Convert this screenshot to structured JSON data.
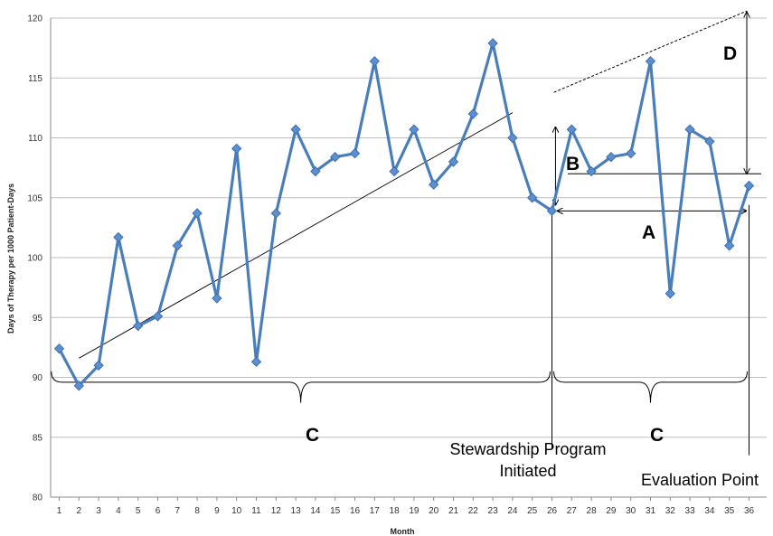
{
  "chart_data": {
    "type": "line",
    "title": "",
    "xlabel": "Month",
    "ylabel": "Days of Therapy per 1000 Patient-Days",
    "xlim": [
      1,
      36
    ],
    "ylim": [
      80,
      120
    ],
    "ytick_step": 5,
    "grid": true,
    "legend": "none",
    "x": [
      1,
      2,
      3,
      4,
      5,
      6,
      7,
      8,
      9,
      10,
      11,
      12,
      13,
      14,
      15,
      16,
      17,
      18,
      19,
      20,
      21,
      22,
      23,
      24,
      25,
      26,
      27,
      28,
      29,
      30,
      31,
      32,
      33,
      34,
      35,
      36
    ],
    "series": [
      {
        "values": [
          92.4,
          89.3,
          91.0,
          101.7,
          94.3,
          95.1,
          101.0,
          103.7,
          96.6,
          109.1,
          91.3,
          103.7,
          110.7,
          107.2,
          108.4,
          108.7,
          116.4,
          107.2,
          110.7,
          106.1,
          108.0,
          112.0,
          117.9,
          110.0,
          105.0,
          103.9,
          110.7,
          107.2,
          108.4,
          108.7,
          116.4,
          97.0,
          110.7,
          109.7,
          101.0,
          106.0
        ]
      }
    ],
    "annotations": {
      "labels": {
        "a": "A",
        "b": "B",
        "c_left": "C",
        "c_right": "C",
        "d": "D",
        "program_line1": "Stewardship Program",
        "program_line2": "Initiated",
        "evaluation": "Evaluation Point"
      },
      "trend_line": {
        "x": [
          2,
          24
        ],
        "y": [
          91.6,
          112.1
        ]
      },
      "projected_line": {
        "x": [
          26.1,
          35.9
        ],
        "y": [
          113.8,
          120.6
        ]
      },
      "program_month": 26,
      "evaluation_month": 36
    },
    "colors": {
      "series": "#4a7ebb",
      "marker": "#5b8fd0",
      "grid": "#bfbfbf"
    }
  }
}
